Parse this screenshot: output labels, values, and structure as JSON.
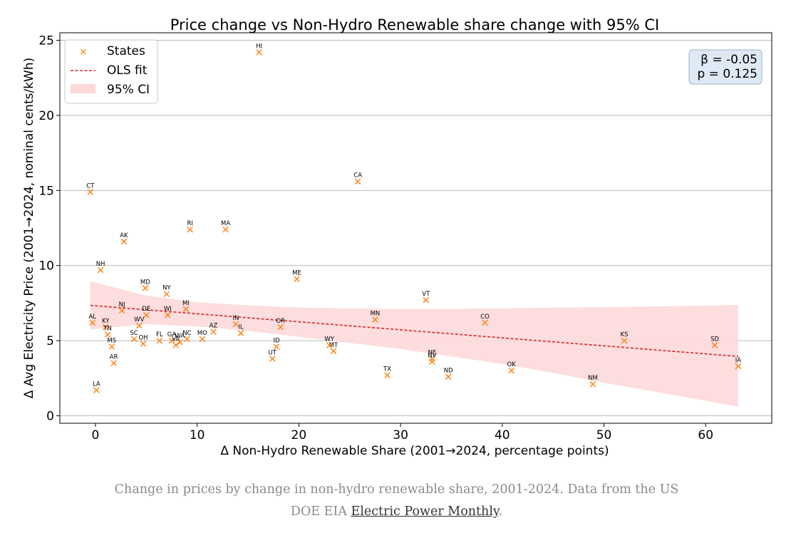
{
  "chart_data": {
    "type": "scatter",
    "title": "Price change vs Non-Hydro Renewable share change with 95% CI",
    "xlabel": "Δ Non-Hydro Renewable Share (2001→2024, percentage points)",
    "ylabel": "Δ Avg Electricity Price (2001→2024, nominal cents/kWh)",
    "xlim": [
      -3.5,
      66.5
    ],
    "ylim": [
      -0.5,
      25.5
    ],
    "xticks": [
      0,
      10,
      20,
      30,
      40,
      50,
      60
    ],
    "yticks": [
      0,
      5,
      10,
      15,
      20,
      25
    ],
    "grid": "horizontal",
    "legend": {
      "placement": "top-left",
      "entries": [
        "States",
        "OLS fit",
        "95% CI"
      ]
    },
    "stats": {
      "beta": "β = -0.05",
      "p": "p = 0.125"
    },
    "colors": {
      "points": "#ff7f0e",
      "fit": "#d62728",
      "ci": "#fdd9d9"
    },
    "fit_line": {
      "x": [
        -0.5,
        63.2
      ],
      "y": [
        7.35,
        3.95
      ]
    },
    "ci_band": {
      "x": [
        -0.5,
        5,
        10,
        15,
        20,
        25,
        30,
        35,
        40,
        45,
        50,
        55,
        60,
        63.2
      ],
      "upper": [
        8.95,
        8.0,
        7.55,
        7.35,
        7.2,
        7.15,
        7.1,
        7.12,
        7.15,
        7.2,
        7.23,
        7.28,
        7.33,
        7.38
      ],
      "lower": [
        5.75,
        6.1,
        5.95,
        5.65,
        5.25,
        4.85,
        4.45,
        3.95,
        3.45,
        2.85,
        2.2,
        1.6,
        1.0,
        0.6
      ]
    },
    "points": [
      {
        "state": "AL",
        "x": -0.3,
        "y": 6.2
      },
      {
        "state": "AK",
        "x": 2.8,
        "y": 11.6
      },
      {
        "state": "AZ",
        "x": 11.6,
        "y": 5.6
      },
      {
        "state": "AR",
        "x": 1.8,
        "y": 3.5
      },
      {
        "state": "CA",
        "x": 25.8,
        "y": 15.6
      },
      {
        "state": "CO",
        "x": 38.3,
        "y": 6.2
      },
      {
        "state": "CT",
        "x": -0.5,
        "y": 14.9
      },
      {
        "state": "DE",
        "x": 5.0,
        "y": 6.7
      },
      {
        "state": "FL",
        "x": 6.3,
        "y": 5.0
      },
      {
        "state": "GA",
        "x": 7.5,
        "y": 5.0
      },
      {
        "state": "HI",
        "x": 16.1,
        "y": 24.2
      },
      {
        "state": "ID",
        "x": 17.8,
        "y": 4.6
      },
      {
        "state": "IL",
        "x": 14.3,
        "y": 5.5
      },
      {
        "state": "IN",
        "x": 13.8,
        "y": 6.1
      },
      {
        "state": "IA",
        "x": 63.2,
        "y": 3.3
      },
      {
        "state": "KS",
        "x": 52.0,
        "y": 5.0
      },
      {
        "state": "KY",
        "x": 1.0,
        "y": 5.9
      },
      {
        "state": "LA",
        "x": 0.1,
        "y": 1.7
      },
      {
        "state": "ME",
        "x": 19.8,
        "y": 9.1
      },
      {
        "state": "MD",
        "x": 4.9,
        "y": 8.5
      },
      {
        "state": "MA",
        "x": 12.8,
        "y": 12.4
      },
      {
        "state": "MI",
        "x": 8.9,
        "y": 7.1
      },
      {
        "state": "MN",
        "x": 27.5,
        "y": 6.4
      },
      {
        "state": "MS",
        "x": 1.6,
        "y": 4.6
      },
      {
        "state": "MO",
        "x": 10.5,
        "y": 5.1
      },
      {
        "state": "MT",
        "x": 23.4,
        "y": 4.3
      },
      {
        "state": "NE",
        "x": 33.1,
        "y": 3.8
      },
      {
        "state": "NV",
        "x": 33.1,
        "y": 3.6
      },
      {
        "state": "NH",
        "x": 0.5,
        "y": 9.7
      },
      {
        "state": "NJ",
        "x": 2.6,
        "y": 7.0
      },
      {
        "state": "NM",
        "x": 48.9,
        "y": 2.1
      },
      {
        "state": "NY",
        "x": 7.0,
        "y": 8.1
      },
      {
        "state": "NC",
        "x": 9.0,
        "y": 5.1
      },
      {
        "state": "ND",
        "x": 34.7,
        "y": 2.6
      },
      {
        "state": "OH",
        "x": 4.7,
        "y": 4.8
      },
      {
        "state": "OK",
        "x": 40.9,
        "y": 3.0
      },
      {
        "state": "OR",
        "x": 18.2,
        "y": 5.9
      },
      {
        "state": "RI",
        "x": 9.3,
        "y": 12.4
      },
      {
        "state": "SC",
        "x": 3.8,
        "y": 5.1
      },
      {
        "state": "SD",
        "x": 60.9,
        "y": 4.7
      },
      {
        "state": "TN",
        "x": 1.2,
        "y": 5.4
      },
      {
        "state": "TX",
        "x": 28.7,
        "y": 2.7
      },
      {
        "state": "UT",
        "x": 17.4,
        "y": 3.8
      },
      {
        "state": "VT",
        "x": 32.5,
        "y": 7.7
      },
      {
        "state": "VA",
        "x": 7.9,
        "y": 4.7
      },
      {
        "state": "WA",
        "x": 8.3,
        "y": 4.9
      },
      {
        "state": "WV",
        "x": 4.3,
        "y": 6.0
      },
      {
        "state": "WI",
        "x": 7.1,
        "y": 6.7
      },
      {
        "state": "WY",
        "x": 23.0,
        "y": 4.7
      }
    ]
  },
  "caption": {
    "text": "Change in prices by change in non-hydro renewable share, 2001-2024. Data from the US DOE EIA ",
    "link": "Electric Power Monthly",
    "end": "."
  }
}
